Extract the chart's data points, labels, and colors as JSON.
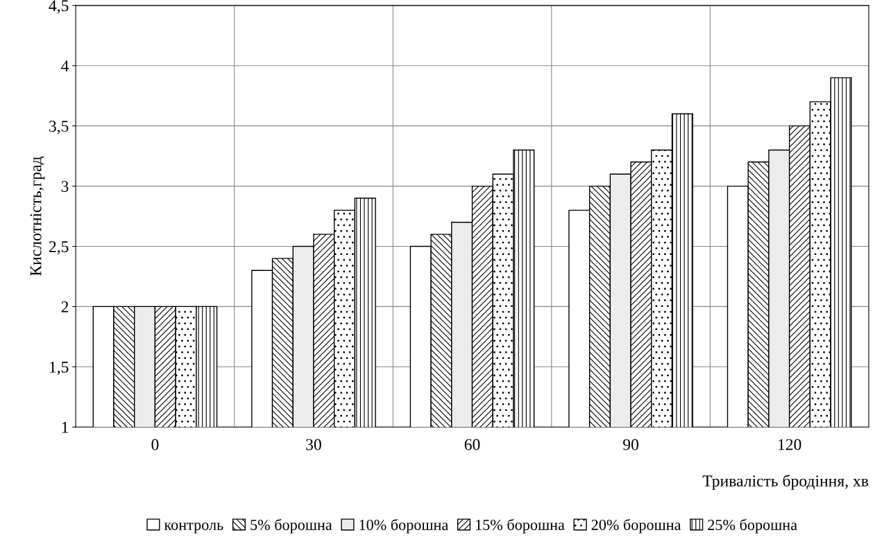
{
  "chart_data": {
    "type": "bar",
    "xlabel": "Тривалість бродіння, хв",
    "ylabel": "Кислотність,град",
    "categories": [
      "0",
      "30",
      "60",
      "90",
      "120"
    ],
    "series": [
      {
        "name": "контроль",
        "color": "#ffffff",
        "values": [
          2,
          2.3,
          2.5,
          2.8,
          3.0
        ]
      },
      {
        "name": "5% борошна",
        "color": "#000000",
        "values": [
          2,
          2.4,
          2.6,
          3.0,
          3.2
        ]
      },
      {
        "name": "10% борошна",
        "color": "#ececec",
        "values": [
          2,
          2.5,
          2.7,
          3.1,
          3.3
        ]
      },
      {
        "name": "15% борошна",
        "color": "#000000",
        "values": [
          2,
          2.6,
          3.0,
          3.2,
          3.5
        ]
      },
      {
        "name": "20% борошна",
        "color": "#000000",
        "values": [
          2,
          2.8,
          3.1,
          3.3,
          3.7
        ]
      },
      {
        "name": "25% борошна",
        "color": "#000000",
        "values": [
          2,
          2.9,
          3.3,
          3.6,
          3.9
        ]
      }
    ],
    "ylim": [
      1,
      4.5
    ],
    "yticks": [
      1,
      {
        "value": 1.5,
        "label": "1,5"
      },
      2,
      {
        "value": 2.5,
        "label": "2,5"
      },
      3,
      {
        "value": 3.5,
        "label": "3,5"
      },
      4,
      {
        "value": 4.5,
        "label": "4,5"
      }
    ],
    "grid": true,
    "legend": "bottom"
  }
}
